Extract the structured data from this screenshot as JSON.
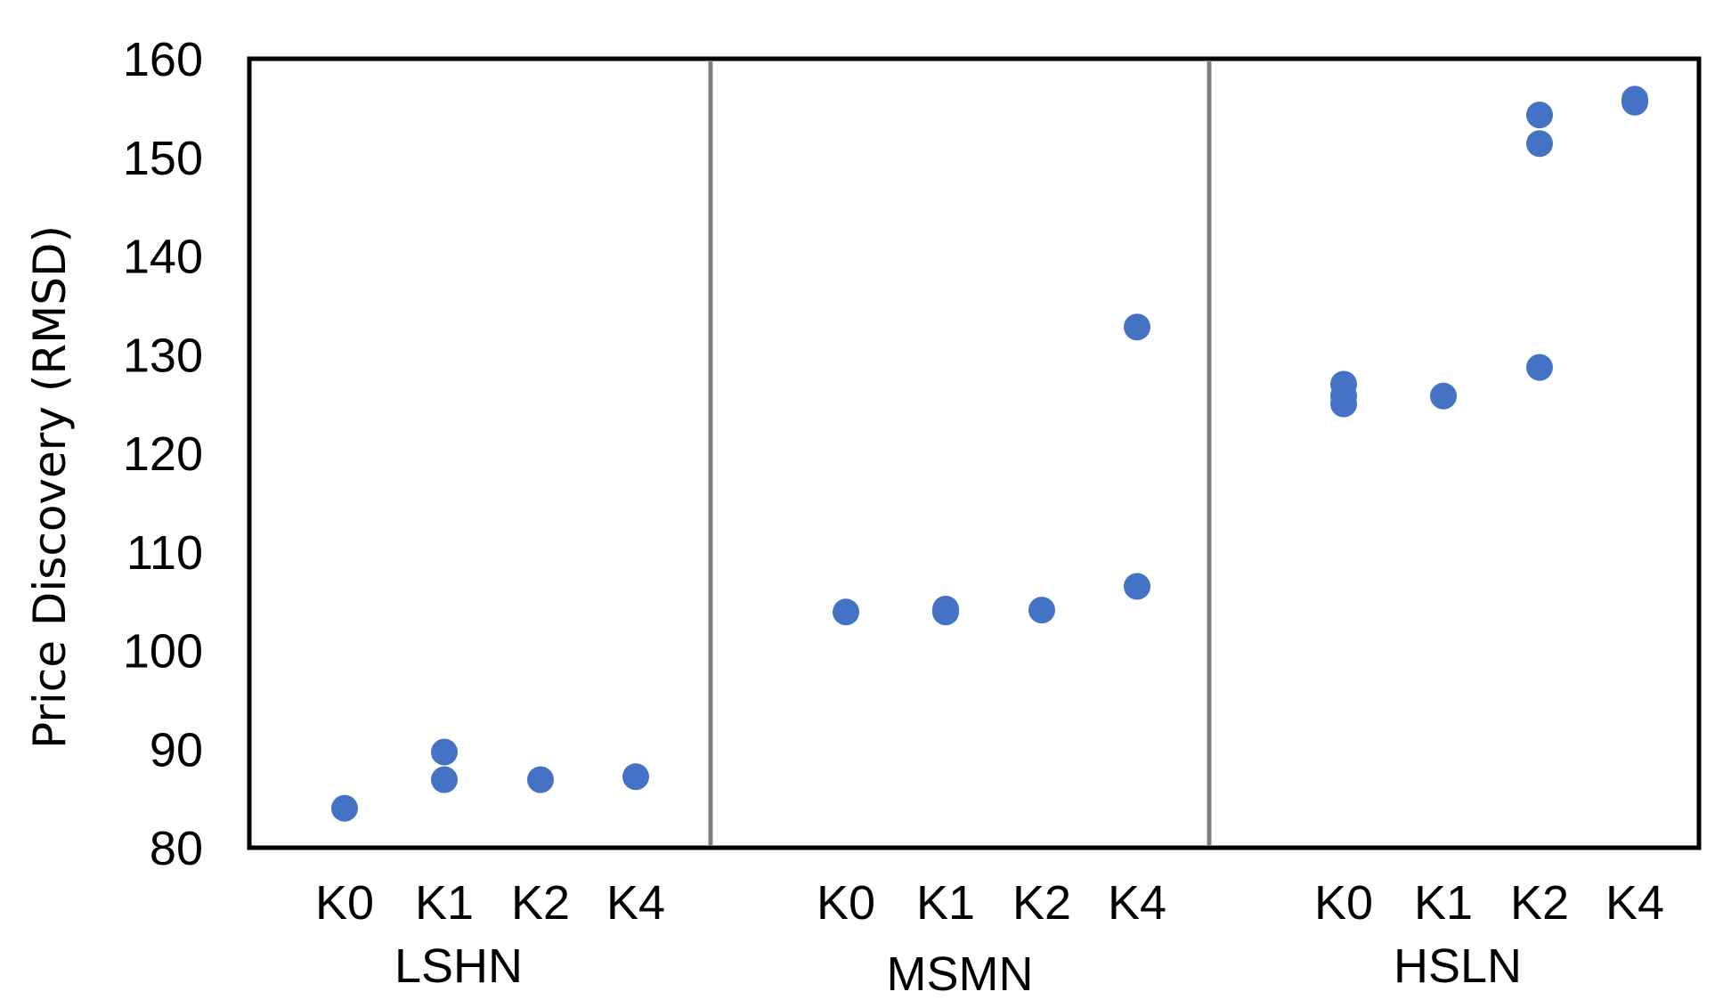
{
  "chart_data": {
    "type": "scatter",
    "title": "",
    "ylabel": "Price Discovery (RMSD)",
    "xlabel": "",
    "ylim": [
      80,
      160
    ],
    "yticks": [
      80,
      90,
      100,
      110,
      120,
      130,
      140,
      150,
      160
    ],
    "grid": false,
    "legend": "none",
    "marker_color": "#4472C4",
    "groups": [
      {
        "name": "LSHN",
        "categories": [
          "K0",
          "K1",
          "K2",
          "K4"
        ],
        "points": [
          {
            "category": "K0",
            "y": 84.0
          },
          {
            "category": "K1",
            "y": 86.9
          },
          {
            "category": "K1",
            "y": 89.7
          },
          {
            "category": "K2",
            "y": 86.9
          },
          {
            "category": "K4",
            "y": 87.2
          }
        ]
      },
      {
        "name": "MSMN",
        "categories": [
          "K0",
          "K1",
          "K2",
          "K4"
        ],
        "points": [
          {
            "category": "K0",
            "y": 103.9
          },
          {
            "category": "K1",
            "y": 103.9
          },
          {
            "category": "K1",
            "y": 104.2
          },
          {
            "category": "K2",
            "y": 104.1
          },
          {
            "category": "K4",
            "y": 106.5
          },
          {
            "category": "K4",
            "y": 132.8
          }
        ]
      },
      {
        "name": "HSLN",
        "categories": [
          "K0",
          "K1",
          "K2",
          "K4"
        ],
        "points": [
          {
            "category": "K0",
            "y": 125.0
          },
          {
            "category": "K0",
            "y": 125.8
          },
          {
            "category": "K0",
            "y": 127.0
          },
          {
            "category": "K1",
            "y": 125.8
          },
          {
            "category": "K2",
            "y": 128.7
          },
          {
            "category": "K2",
            "y": 151.4
          },
          {
            "category": "K2",
            "y": 154.3
          },
          {
            "category": "K4",
            "y": 155.6
          },
          {
            "category": "K4",
            "y": 155.9
          }
        ]
      }
    ]
  }
}
